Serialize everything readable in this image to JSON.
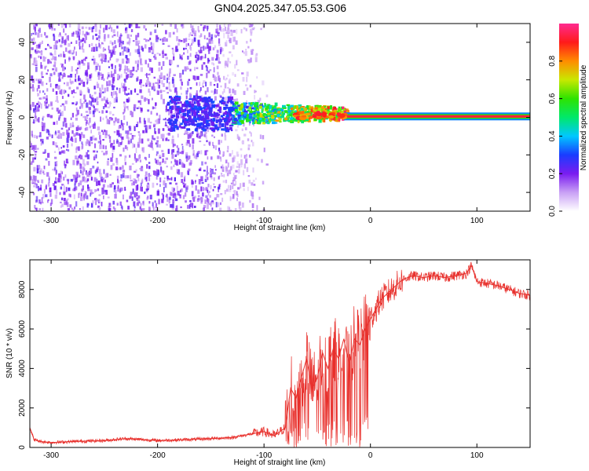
{
  "title": "GN04.2025.347.05.53.G06",
  "chart_data": [
    {
      "type": "heatmap",
      "xlabel": "Height of straight line (km)",
      "ylabel": "Frequency (Hz)",
      "xlim": [
        -320,
        150
      ],
      "ylim": [
        -50,
        50
      ],
      "x_ticks": [
        -300,
        -200,
        -100,
        0,
        100
      ],
      "y_ticks": [
        -40,
        -20,
        0,
        20,
        40
      ],
      "colorbar": {
        "label": "Normalized spectral amplitude",
        "range": [
          0,
          1
        ],
        "ticks": [
          0.0,
          0.2,
          0.4,
          0.6,
          0.8
        ]
      },
      "features": [
        {
          "x_range": [
            -320,
            -100
          ],
          "description": "diffuse noise",
          "amplitude": 0.1
        },
        {
          "x_range": [
            -130,
            -25
          ],
          "freq_center": 1.5,
          "amplitude": 0.5
        },
        {
          "x_range": [
            -25,
            150
          ],
          "freq_center": 0.5,
          "amplitude": 0.95
        }
      ]
    },
    {
      "type": "line",
      "xlabel": "Height of straight line (km)",
      "ylabel": "SNR (10 * v/v)",
      "xlim": [
        -320,
        150
      ],
      "ylim": [
        0,
        9500
      ],
      "x_ticks": [
        -300,
        -200,
        -100,
        0,
        100
      ],
      "y_ticks": [
        0,
        2000,
        4000,
        6000,
        8000
      ],
      "color": "#e8302c",
      "series": [
        {
          "x": [
            -320,
            -316,
            -310,
            -300,
            -280,
            -250,
            -230,
            -200,
            -170,
            -150,
            -130,
            -110,
            -100,
            -90,
            -80,
            -75,
            -70,
            -65,
            -60,
            -55,
            -50,
            -45,
            -40,
            -35,
            -30,
            -25,
            -20,
            -15,
            -10,
            -5,
            0,
            5,
            10,
            20,
            30,
            40,
            50,
            60,
            70,
            80,
            90,
            95,
            100,
            110,
            120,
            130,
            140,
            150
          ],
          "y": [
            1000,
            400,
            300,
            250,
            300,
            350,
            450,
            350,
            400,
            450,
            500,
            700,
            800,
            600,
            1000,
            3000,
            2500,
            3500,
            4500,
            3000,
            3500,
            4800,
            4000,
            5000,
            4500,
            5500,
            4200,
            5500,
            5200,
            6000,
            6500,
            7000,
            7500,
            8000,
            8500,
            8700,
            8600,
            8700,
            8600,
            8700,
            8800,
            9200,
            8400,
            8300,
            8200,
            8000,
            7800,
            7700
          ]
        }
      ]
    }
  ]
}
